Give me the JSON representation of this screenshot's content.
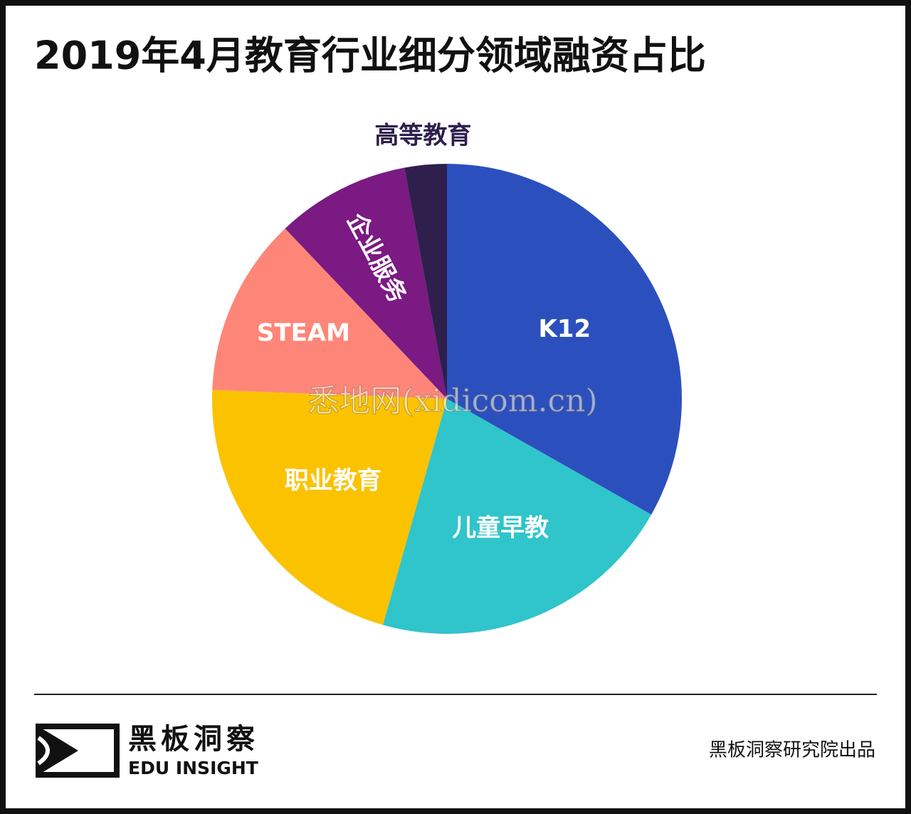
{
  "chart_data": {
    "type": "pie",
    "title": "2019年4月教育行业细分领域融资占比",
    "categories": [
      "K12",
      "儿童早教",
      "职业教育",
      "STEAM",
      "企业服务",
      "高等教育"
    ],
    "values": [
      33.2,
      21.2,
      21.2,
      12.3,
      9.2,
      2.9
    ],
    "colors": [
      "#2b50be",
      "#30c4cb",
      "#fbc200",
      "#fe8678",
      "#7a1a82",
      "#2e1f4c"
    ]
  },
  "watermark": "悉地网(xidicom.cn)",
  "footer": {
    "logo_cn": "黑板洞察",
    "logo_en": "EDU INSIGHT",
    "credit": "黑板洞察研究院出品"
  }
}
